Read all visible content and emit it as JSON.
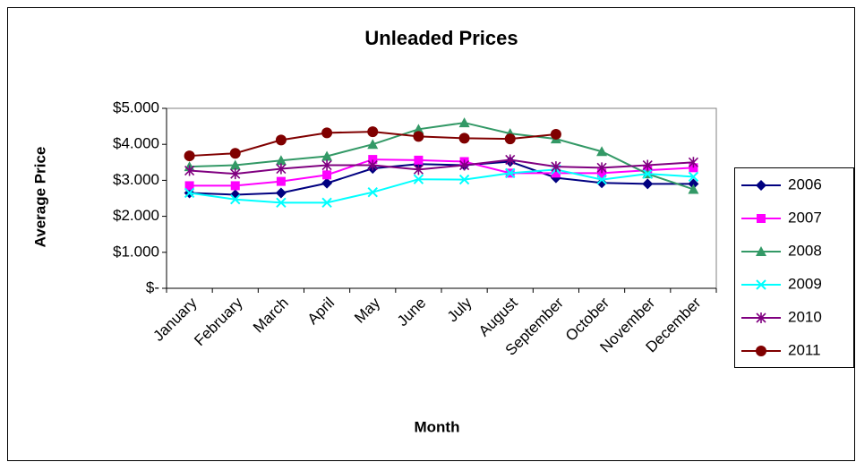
{
  "chart_data": {
    "type": "line",
    "title": "Unleaded Prices",
    "x_label": "Month",
    "y_label": "Average Price",
    "categories": [
      "January",
      "February",
      "March",
      "April",
      "May",
      "June",
      "July",
      "August",
      "September",
      "October",
      "November",
      "December"
    ],
    "series": [
      {
        "name": "2006",
        "color": "#000080",
        "marker": "diamond",
        "values": [
          2.65,
          2.6,
          2.65,
          2.92,
          3.33,
          3.45,
          3.42,
          3.52,
          3.07,
          2.93,
          2.9,
          2.9
        ]
      },
      {
        "name": "2007",
        "color": "#ff00ff",
        "marker": "square",
        "values": [
          2.85,
          2.85,
          2.97,
          3.15,
          3.58,
          3.56,
          3.52,
          3.2,
          3.2,
          3.2,
          3.28,
          3.35
        ]
      },
      {
        "name": "2008",
        "color": "#339966",
        "marker": "triangle",
        "values": [
          3.38,
          3.42,
          3.55,
          3.67,
          4.0,
          4.42,
          4.6,
          4.3,
          4.15,
          3.8,
          3.18,
          2.75
        ]
      },
      {
        "name": "2009",
        "color": "#00ffff",
        "marker": "x",
        "values": [
          2.65,
          2.47,
          2.38,
          2.38,
          2.67,
          3.03,
          3.02,
          3.2,
          3.3,
          3.02,
          3.18,
          3.1
        ]
      },
      {
        "name": "2010",
        "color": "#800080",
        "marker": "star",
        "values": [
          3.27,
          3.18,
          3.32,
          3.42,
          3.42,
          3.3,
          3.42,
          3.57,
          3.38,
          3.35,
          3.42,
          3.5
        ]
      },
      {
        "name": "2011",
        "color": "#800000",
        "marker": "circle",
        "values": [
          3.68,
          3.75,
          4.12,
          4.32,
          4.35,
          4.22,
          4.17,
          4.15,
          4.28,
          null,
          null,
          null
        ]
      }
    ],
    "ylim": [
      0,
      5
    ],
    "yticks": [
      {
        "value": 0,
        "label": "$-"
      },
      {
        "value": 1,
        "label": "$1.000"
      },
      {
        "value": 2,
        "label": "$2.000"
      },
      {
        "value": 3,
        "label": "$3.000"
      },
      {
        "value": 4,
        "label": "$4.000"
      },
      {
        "value": 5,
        "label": "$5.000"
      }
    ],
    "grid": false,
    "legend": "right"
  }
}
